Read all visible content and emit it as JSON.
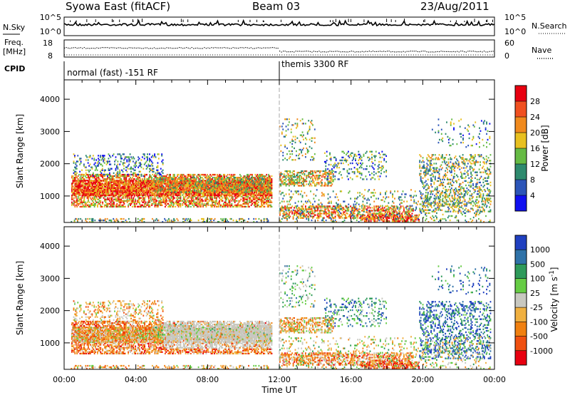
{
  "header": {
    "station": "Syowa East (fitACF)",
    "beam": "Beam 03",
    "date": "23/Aug/2011"
  },
  "top_panels": {
    "nsky": {
      "left_label": "N.Sky",
      "left_ticks": [
        "10^5",
        "10^0"
      ],
      "right_label": "N.Search",
      "right_ticks": [
        "10^5",
        "10^0"
      ]
    },
    "freq": {
      "left_label_1": "Freq.",
      "left_label_2": "[MHz]",
      "left_ticks": [
        "18",
        "8"
      ],
      "right_label": "Nave",
      "right_ticks": [
        "60",
        "0"
      ]
    },
    "cpid": {
      "label": "CPID",
      "segments": [
        {
          "name": "normal (fast) -151 RF",
          "start_hour": 0
        },
        {
          "name": "themis 3300 RF",
          "start_hour": 12
        }
      ]
    }
  },
  "chart_data": [
    {
      "type": "heatmap",
      "title": "",
      "ylabel": "Slant Range [km]",
      "ylim": [
        180,
        4600
      ],
      "xlim": [
        0,
        24
      ],
      "yticks": [
        1000,
        2000,
        3000,
        4000
      ],
      "colorbar": {
        "label": "Power [dB]",
        "tick_labels": [
          "4",
          "8",
          "12",
          "16",
          "20",
          "24",
          "28"
        ],
        "range": [
          0,
          30
        ],
        "colors": [
          "#1010f0",
          "#2c55b8",
          "#2e8a6e",
          "#66bb44",
          "#e8c020",
          "#f08a1e",
          "#f05020",
          "#e80010"
        ]
      }
    },
    {
      "type": "heatmap",
      "title": "",
      "ylabel": "Slant Range [km]",
      "xlabel": "Time UT",
      "ylim": [
        180,
        4600
      ],
      "xlim": [
        0,
        24
      ],
      "yticks": [
        1000,
        2000,
        3000,
        4000
      ],
      "xtick_labels": [
        "00:00",
        "04:00",
        "08:00",
        "12:00",
        "16:00",
        "20:00",
        "00:00"
      ],
      "colorbar": {
        "label": "Velocity [m s^-1]",
        "tick_labels": [
          "1000",
          "500",
          "100",
          "25",
          "-25",
          "-100",
          "-500",
          "-1000"
        ],
        "colors": [
          "#2040c0",
          "#2f72a8",
          "#2e9a5a",
          "#66cc44",
          "#c8c8c0",
          "#f0b040",
          "#f08010",
          "#f05010",
          "#e80010"
        ]
      }
    }
  ],
  "colors": {
    "cpid_divider": "#999999"
  }
}
